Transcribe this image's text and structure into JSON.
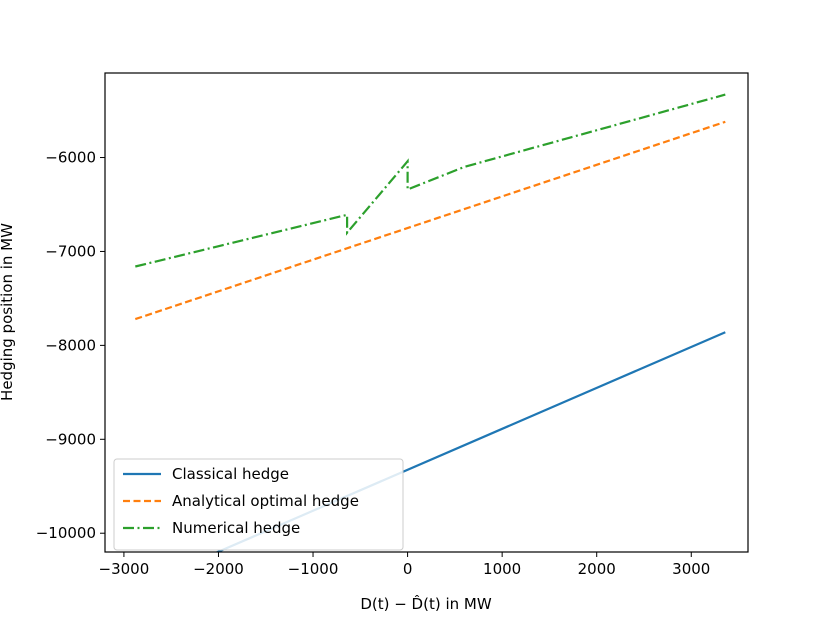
{
  "chart_data": {
    "type": "line",
    "title": "",
    "xlabel": "D(t) − D̂(t) in MW",
    "ylabel": "Hedging position in MW",
    "xlim": [
      -3200,
      3600
    ],
    "ylim": [
      -10200,
      -5100
    ],
    "xticks": [
      -3000,
      -2000,
      -1000,
      0,
      1000,
      2000,
      3000
    ],
    "xtick_labels": [
      "−3000",
      "−2000",
      "−1000",
      "0",
      "1000",
      "2000",
      "3000"
    ],
    "yticks": [
      -10000,
      -9000,
      -8000,
      -7000,
      -6000
    ],
    "ytick_labels": [
      "−10000",
      "−9000",
      "−8000",
      "−7000",
      "−6000"
    ],
    "grid": false,
    "legend_position": "lower-left",
    "series": [
      {
        "name": "Classical hedge",
        "color": "#1f77b4",
        "style": "solid",
        "x": [
          -2880,
          3360
        ],
        "y": [
          -10580,
          -7860
        ]
      },
      {
        "name": "Analytical optimal hedge",
        "color": "#ff7f0e",
        "style": "dashed",
        "x": [
          -2880,
          3360
        ],
        "y": [
          -7720,
          -5620
        ]
      },
      {
        "name": "Numerical hedge",
        "color": "#2ca02c",
        "style": "dashdot",
        "x": [
          -2880,
          -640,
          -640,
          0,
          0,
          600,
          3360
        ],
        "y": [
          -7160,
          -6610,
          -6800,
          -6040,
          -6340,
          -6100,
          -5330
        ]
      }
    ]
  }
}
